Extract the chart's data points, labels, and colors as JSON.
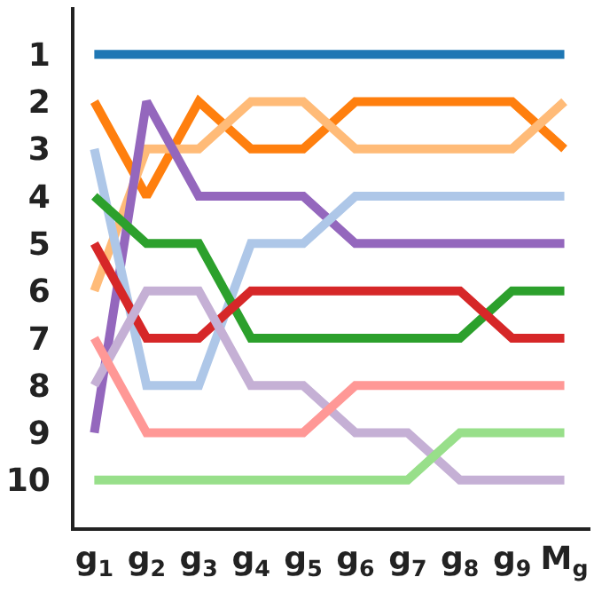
{
  "chart_data": {
    "type": "line",
    "categories": [
      "g$_{1}$",
      "g$_{2}$",
      "g$_{3}$",
      "g$_{4}$",
      "g$_{5}$",
      "g$_{6}$",
      "g$_{7}$",
      "g$_{8}$",
      "g$_{9}$",
      "M$_{g}$"
    ],
    "ylim": [
      11,
      0
    ],
    "yticks": [
      1,
      2,
      3,
      4,
      5,
      6,
      7,
      8,
      9,
      10
    ],
    "grid": false,
    "marker": "none",
    "line_style": "solid",
    "series": [
      {
        "color": "#1f77b4",
        "values": [
          1,
          1,
          1,
          1,
          1,
          1,
          1,
          1,
          1,
          1
        ]
      },
      {
        "color": "#ff7f0e",
        "values": [
          2,
          4,
          2,
          3,
          3,
          2,
          2,
          2,
          2,
          3
        ]
      },
      {
        "color": "#ffbb78",
        "values": [
          6,
          3,
          3,
          2,
          2,
          3,
          3,
          3,
          3,
          2
        ]
      },
      {
        "color": "#9467bd",
        "values": [
          9,
          2,
          4,
          4,
          4,
          5,
          5,
          5,
          5,
          5
        ]
      },
      {
        "color": "#aec7e8",
        "values": [
          3,
          8,
          8,
          5,
          5,
          4,
          4,
          4,
          4,
          4
        ]
      },
      {
        "color": "#2ca02c",
        "values": [
          4,
          5,
          5,
          7,
          7,
          7,
          7,
          7,
          6,
          6
        ]
      },
      {
        "color": "#d62728",
        "values": [
          5,
          7,
          7,
          6,
          6,
          6,
          6,
          6,
          7,
          7
        ]
      },
      {
        "color": "#c5b0d5",
        "values": [
          8,
          6,
          6,
          8,
          8,
          9,
          9,
          10,
          10,
          10
        ]
      },
      {
        "color": "#ff9896",
        "values": [
          7,
          9,
          9,
          9,
          9,
          8,
          8,
          8,
          8,
          8
        ]
      },
      {
        "color": "#98df8a",
        "values": [
          10,
          10,
          10,
          10,
          10,
          10,
          10,
          9,
          9,
          9
        ]
      }
    ]
  }
}
